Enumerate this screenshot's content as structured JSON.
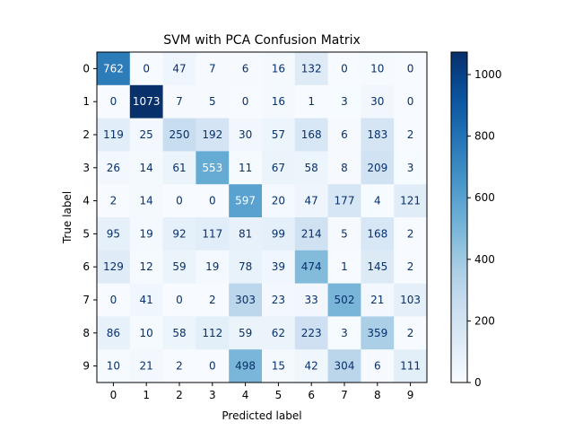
{
  "chart_data": {
    "type": "heatmap",
    "title": "SVM with PCA Confusion Matrix",
    "xlabel": "Predicted label",
    "ylabel": "True label",
    "x_categories": [
      "0",
      "1",
      "2",
      "3",
      "4",
      "5",
      "6",
      "7",
      "8",
      "9"
    ],
    "y_categories": [
      "0",
      "1",
      "2",
      "3",
      "4",
      "5",
      "6",
      "7",
      "8",
      "9"
    ],
    "values": [
      [
        762,
        0,
        47,
        7,
        6,
        16,
        132,
        0,
        10,
        0
      ],
      [
        0,
        1073,
        7,
        5,
        0,
        16,
        1,
        3,
        30,
        0
      ],
      [
        119,
        25,
        250,
        192,
        30,
        57,
        168,
        6,
        183,
        2
      ],
      [
        26,
        14,
        61,
        553,
        11,
        67,
        58,
        8,
        209,
        3
      ],
      [
        2,
        14,
        0,
        0,
        597,
        20,
        47,
        177,
        4,
        121
      ],
      [
        95,
        19,
        92,
        117,
        81,
        99,
        214,
        5,
        168,
        2
      ],
      [
        129,
        12,
        59,
        19,
        78,
        39,
        474,
        1,
        145,
        2
      ],
      [
        0,
        41,
        0,
        2,
        303,
        23,
        33,
        502,
        21,
        103
      ],
      [
        86,
        10,
        58,
        112,
        59,
        62,
        223,
        3,
        359,
        2
      ],
      [
        10,
        21,
        2,
        0,
        498,
        15,
        42,
        304,
        6,
        111
      ]
    ],
    "colormap": "Blues",
    "vmin": 0,
    "vmax": 1073,
    "colorbar_ticks": [
      0,
      200,
      400,
      600,
      800,
      1000
    ],
    "text_color_light": "#ffffff",
    "text_color_dark": "#08306b"
  }
}
